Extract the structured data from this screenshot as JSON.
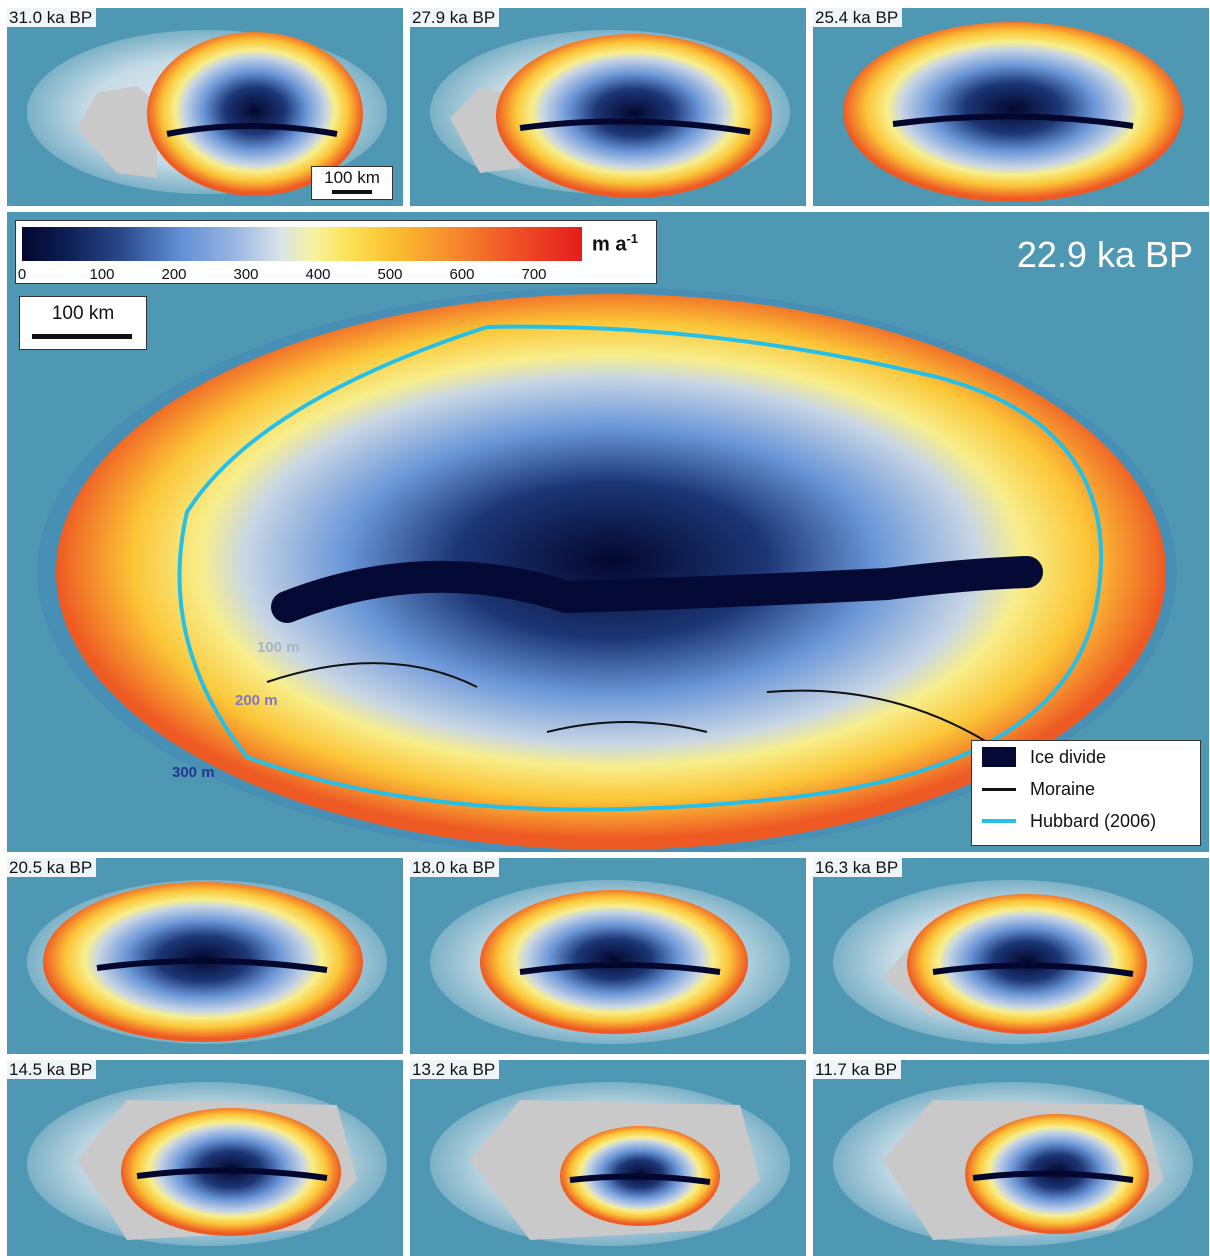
{
  "panels_top": [
    "31.0 ka BP",
    "27.9 ka BP",
    "25.4 ka BP"
  ],
  "panels_bottom": [
    "20.5 ka BP",
    "18.0 ka BP",
    "16.3 ka BP",
    "14.5 ka BP",
    "13.2 ka BP",
    "11.7 ka BP"
  ],
  "small_scalebar": "100 km",
  "main": {
    "title": "22.9 ka BP",
    "scalebar": "100 km",
    "colorbar": {
      "ticks": [
        "0",
        "100",
        "200",
        "300",
        "400",
        "500",
        "600",
        "700"
      ],
      "unit": "m a",
      "unit_sup": "-1"
    },
    "contour_labels": [
      "100 m",
      "200 m",
      "300 m"
    ],
    "legend": [
      {
        "label": "Ice divide",
        "color": "#050a35"
      },
      {
        "label": "Moraine",
        "color": "#111111"
      },
      {
        "label": "Hubbard (2006)",
        "color": "#25c0e8"
      }
    ]
  },
  "colors": {
    "sea": "#4f98b3",
    "outline": "#25c0e8"
  }
}
